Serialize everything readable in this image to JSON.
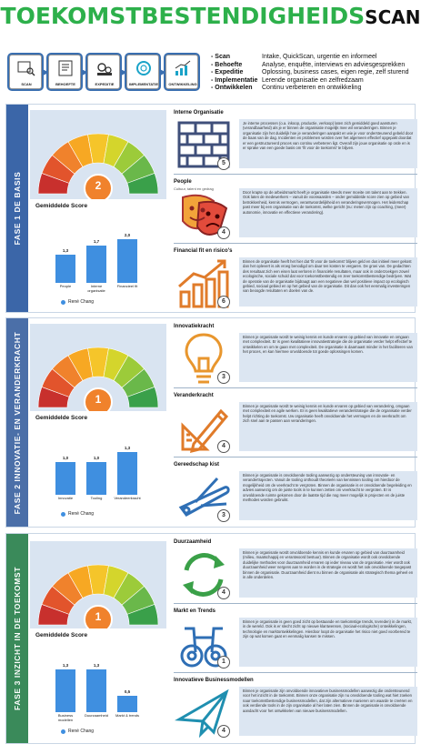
{
  "title": {
    "green": "TOEKOMSTBESTENDIGHEIDS",
    "black": "SCAN"
  },
  "process": [
    {
      "label": "SCAN"
    },
    {
      "label": "BEHOEFTE"
    },
    {
      "label": "EXPEDITIE"
    },
    {
      "label": "IMPLEMENTATIE"
    },
    {
      "label": "ONTWIKKELING"
    }
  ],
  "legend": [
    {
      "key": "- Scan",
      "value": "Intake, QuickScan, urgentie en informeel"
    },
    {
      "key": "- Behoefte",
      "value": "Analyse, enquête, interviews en adviesgesprekken"
    },
    {
      "key": "- Expeditie",
      "value": "Oplossing, business cases, eigen regie, zelf sturend"
    },
    {
      "key": "- Implementatie",
      "value": "Lerende organisatie en zelfredzaam"
    },
    {
      "key": "- Ontwikkelen",
      "value": "Continu verbeteren en ontwikkeling"
    }
  ],
  "colors": {
    "green": "#2db04b",
    "band": "#3b66a8",
    "bar": "#3f8fe0"
  },
  "phases": [
    {
      "label": "FASE 1  DE BASIS",
      "gauge_value": "2",
      "chart_title": "Gemiddelde Score",
      "legend": "René Chang",
      "chart_data": {
        "type": "bar",
        "categories": [
          "People",
          "Interne organisatie",
          "Financieel fit"
        ],
        "values": [
          1.3,
          1.7,
          2.0
        ],
        "ylim": [
          0,
          2.4
        ]
      },
      "value_labels": [
        "1,3",
        "1,7",
        "2,0"
      ],
      "items": [
        {
          "title": "Interne Organisatie",
          "sub": "",
          "icon": "brick-wall-icon",
          "score": "5",
          "text": "Je interne processen (o.a. inkoop, productie, verkoop) laten zich gemiddeld goed aansturen (verandbaarheid) als je er binnen de organisatie mogelijk mee wil veranderingen. Binnen je organisatie zijn het duidelijk hoe je veranderingen aanpakt en wie je voor ondersteunend gebeld door de baas van de dag. Incidenten en problemen worden over het algemeen effectief opgepakt doordat er een gestructureerd proces van continu verbeteren ligt. Overall zijn jouw organisatie op orde en is er sprake van een goede basis om 'fit voor de toekomst' te blijven."
        },
        {
          "title": "People",
          "sub": "Cultuur, talent en gedrag",
          "icon": "theater-masks-icon",
          "score": "4",
          "text": "Door krapte op de arbeidsmarkt heeft je organisatie steeds meer moeite om talent aan te trekken. Ook laten de medewerkers – vanuit de voorwaarden – onder gemiddelde score zien op gebied van betrokkenheid, kennis vermogen, verantwoordelijkheid en veranderingsvermogen. Het leiderschap past meer bij een organisatie van de toekomst, welke gericht (nu: meten zijn op coaching, (meer) autonomie, innovatie en effectieve verandering)."
        },
        {
          "title": "Financial fit en risico's",
          "sub": "",
          "icon": "growth-chart-icon",
          "score": "6",
          "text": "Binnen de organisatie heeft het hier dat 'fit voor de toekomst' blijven geld en dus initieel meer gekost dan het oplevert is als vroeg benodigd om daar ten kosten te vergaren. De groei van. De gedachten des resultaat zich een eisen laat verloren in financiële resultaten, maar ook in onderzoekgen zowel ecologische, sociale schuld dat voor toekomstbestendig en zeer toekomstbestendige bedrijven. Wat de operatie van de organisatie bijdraagt aan een negatieve dan wel positieve impact op ecologisch gebied, sociaal gebied en op het gebied van de organisatie. Dit dan ook het eenmalig investeringen van beoogde resultaten en doelen van de."
        }
      ]
    },
    {
      "label": "FASE 2  INNOVATIE- EN VERANDERKRACHT",
      "gauge_value": "1",
      "chart_title": "Gemiddelde Score",
      "legend": "René Chang",
      "chart_data": {
        "type": "bar",
        "categories": [
          "Innovatie",
          "Tooling",
          "Verandeerkracht"
        ],
        "values": [
          1.0,
          1.0,
          1.3
        ],
        "ylim": [
          0,
          1.6
        ]
      },
      "value_labels": [
        "1,0",
        "1,0",
        "1,3"
      ],
      "items": [
        {
          "title": "Innovatiekracht",
          "sub": "",
          "icon": "lightbulb-icon",
          "score": "3",
          "text": "Binnen je organisatie wordt te weinig kennis en kunde ervaren op gebied van innovatie en omgaan met complexiteit. Er is geen kwalitatieve innovatiestrategie die de organisatie verder helpt effectief te ontwikkelen en om te gaan met complexiteit. De organisatie is daarnaast minder in het faciliteren van het proces, en kan hiermee onvoldoende tot goede oplossingen komen."
        },
        {
          "title": "Veranderkracht",
          "sub": "",
          "icon": "pencil-ruler-icon",
          "score": "4",
          "text": "Binnen je organisatie wordt te weinig kennis en kunde ervaren op gebied van verandering, omgaan met complexiteit en agile werken. Er is geen kwalitatieve veranderstrategie die de organisatie verder helpt richting de toekomst. Uw organisatie heeft onvoldoende het vermogen en de veerkracht om zich snel aan te passen aan veranderingen."
        },
        {
          "title": "Gereedschap kist",
          "sub": "",
          "icon": "multitool-icon",
          "score": "3",
          "text": "Binnen je organisatie is onvoldoende tooling aanwezig op ondersteuning van innovatie- en verandertrajecten. Vanuit de tooling onthoudt theorieën van kennissen tooling om hierdoor de mogelijkheid om de veerkracht te vergroten. Binnen de organisatie is er onvoldoende begeleiding en advies aanwezig om de juiste tools in te kunnen zetten om veerkracht te vergroten. Er is onvoldoende ruimte gekomen door de laatste tijd die nog meer mogelijk in projecten en de juiste methodes worden gebruikt."
        }
      ]
    },
    {
      "label": "FASE 3  INZICHT IN DE TOEKOMST",
      "gauge_value": "1",
      "chart_title": "Gemiddelde Score",
      "legend": "René Chang",
      "chart_data": {
        "type": "bar",
        "categories": [
          "Business modellen",
          "Duurzaamheid",
          "Markt & trends"
        ],
        "values": [
          1.3,
          1.3,
          0.5
        ],
        "ylim": [
          0,
          1.6
        ]
      },
      "value_labels": [
        "1,3",
        "1,3",
        "0,5"
      ],
      "items": [
        {
          "title": "Duurzaamheid",
          "sub": "",
          "icon": "recycle-arrows-icon",
          "score": "4",
          "text": "Binnen je organisatie wordt onvoldoende kennis en kunde ervaren op gebied van duurzaamheid (milieu, maatschappij en verantwoord bestuur). Binnen de organisatie wordt ook onvoldoende duidelijke methodes voor duurzaamheid ervaren op ieder niveau van de organisatie. Hier wordt ook duurzaamheid weer nergens aan te worden in de strategie en wordt het ook onvoldoende toegepast binnen de organisatie. Duurzaamheid dient nu binnen de organisatie als strategisch thema geheel en in alle onderdelen."
        },
        {
          "title": "Markt en Trends",
          "sub": "",
          "icon": "binoculars-icon",
          "score": "1",
          "text": "Binnen je organisatie is geen goed zicht op bestaande en toekomstige trends, tevreden) in de markt, in de wereld. Ook is er slecht zicht op nieuwe klantwensen, (sociaal-ecologische) ontwikkelingen, technologie en marktontwikkelingen. Hierdoor loopt de organisatie het risico niet goed voorbereid te zijn op wat komen gaat en eenmalig kansen te missen."
        },
        {
          "title": "Innovatieve Businessmodellen",
          "sub": "",
          "icon": "airplane-icon",
          "score": "4",
          "text": "Binnen je organisatie zijn onvoldoende innovatieve businessmodellen aanwezig die ondersteunend voor het inzicht in de toekomst. Binnen onze organisatie zijn nu onvoldoende tooling wat hiet zoeken naar toekomstbestendige businessmodellen, dat zijn alternatieve manieren om waarde te creëren en ook verdiende tools in de zijn organisatie al hier laten zien. Binnen de organisatie is onvoldoende aandacht voor het ontwikkelen van nieuwe businessmodellen."
        }
      ]
    }
  ]
}
